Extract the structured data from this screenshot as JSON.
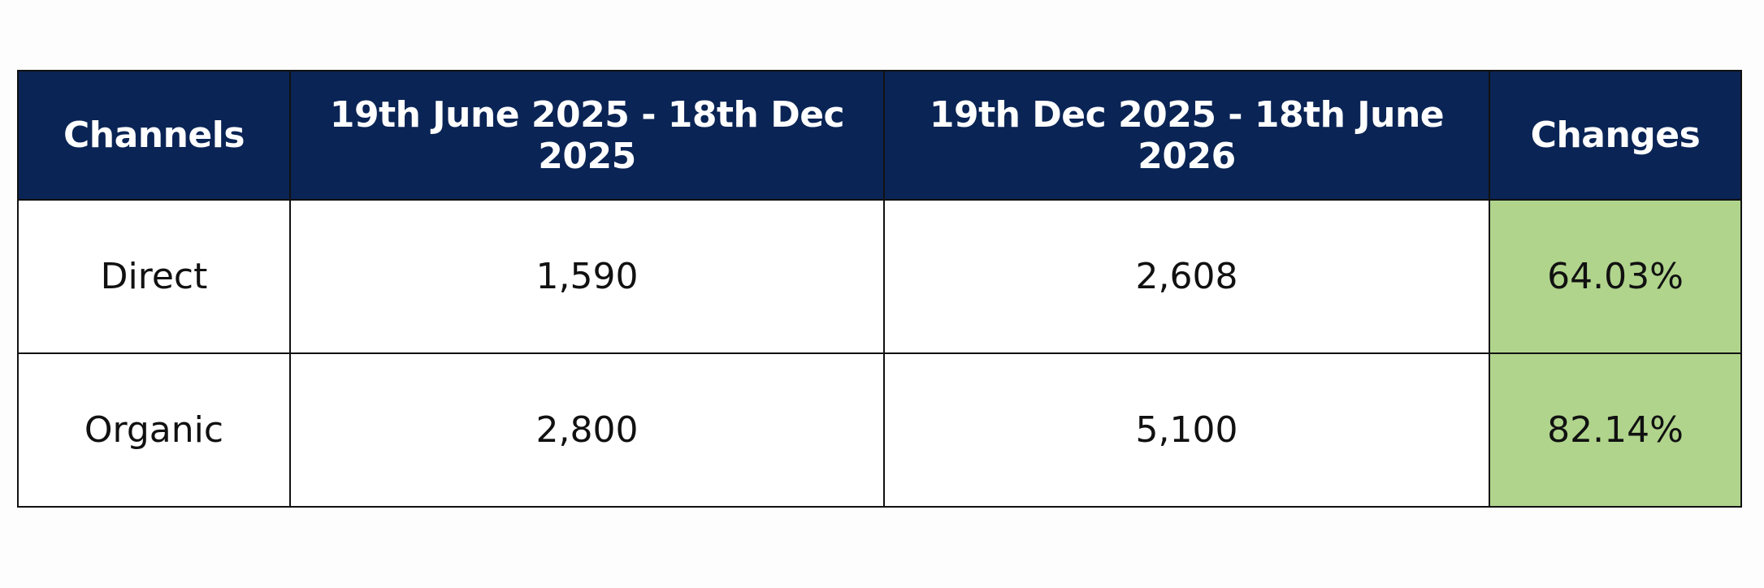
{
  "table": {
    "header": [
      "Channels",
      "19th June 2025 - 18th Dec 2025",
      "19th Dec 2025 - 18th June 2026",
      "Changes"
    ],
    "rows": [
      [
        "Direct",
        "1,590",
        "2,608",
        "64.03%"
      ],
      [
        "Organic",
        "2,800",
        "5,100",
        "82.14%"
      ]
    ]
  }
}
